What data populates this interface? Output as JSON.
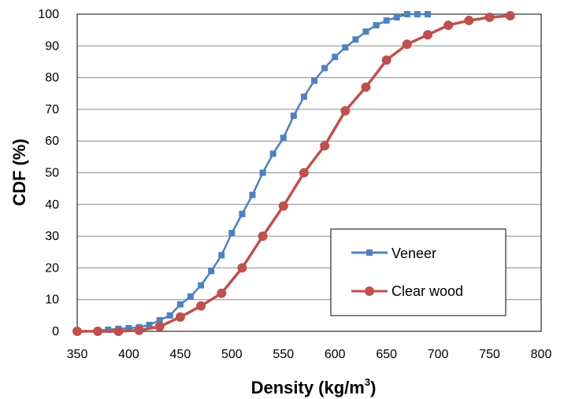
{
  "chart_data": {
    "type": "line",
    "xlabel": "Density (kg/m",
    "xlabel_sup": "3",
    "xlabel_end": ")",
    "ylabel": "CDF (%)",
    "xlim": [
      350,
      800
    ],
    "ylim": [
      0,
      100
    ],
    "x_ticks": [
      "350",
      "400",
      "450",
      "500",
      "550",
      "600",
      "650",
      "700",
      "750",
      "800"
    ],
    "y_ticks": [
      "0",
      "10",
      "20",
      "30",
      "40",
      "50",
      "60",
      "70",
      "80",
      "90",
      "100"
    ],
    "grid": "horizontal",
    "legend_position": "bottom-right",
    "series": [
      {
        "name": "Veneer",
        "color": "#4f81bd",
        "marker": "square",
        "points": [
          [
            370,
            0.3
          ],
          [
            380,
            0.5
          ],
          [
            390,
            0.8
          ],
          [
            400,
            1.0
          ],
          [
            410,
            1.3
          ],
          [
            420,
            2.0
          ],
          [
            430,
            3.5
          ],
          [
            440,
            5.0
          ],
          [
            450,
            8.5
          ],
          [
            460,
            11.0
          ],
          [
            470,
            14.5
          ],
          [
            480,
            19.0
          ],
          [
            490,
            24.0
          ],
          [
            500,
            31.0
          ],
          [
            510,
            37.0
          ],
          [
            520,
            43.0
          ],
          [
            530,
            50.0
          ],
          [
            540,
            56.0
          ],
          [
            550,
            61.0
          ],
          [
            560,
            68.0
          ],
          [
            570,
            74.0
          ],
          [
            580,
            79.0
          ],
          [
            590,
            83.0
          ],
          [
            600,
            86.5
          ],
          [
            610,
            89.5
          ],
          [
            620,
            92.0
          ],
          [
            630,
            94.5
          ],
          [
            640,
            96.5
          ],
          [
            650,
            98.0
          ],
          [
            660,
            99.0
          ],
          [
            670,
            100
          ],
          [
            680,
            100
          ],
          [
            690,
            100
          ]
        ]
      },
      {
        "name": "Clear wood",
        "color": "#c0504d",
        "marker": "circle",
        "points": [
          [
            350,
            0
          ],
          [
            370,
            0
          ],
          [
            390,
            0
          ],
          [
            410,
            0.3
          ],
          [
            430,
            1.5
          ],
          [
            450,
            4.5
          ],
          [
            470,
            8.0
          ],
          [
            490,
            12.0
          ],
          [
            510,
            20.0
          ],
          [
            530,
            30.0
          ],
          [
            550,
            39.5
          ],
          [
            570,
            50.0
          ],
          [
            590,
            58.5
          ],
          [
            610,
            69.5
          ],
          [
            630,
            77.0
          ],
          [
            650,
            85.5
          ],
          [
            670,
            90.5
          ],
          [
            690,
            93.5
          ],
          [
            710,
            96.5
          ],
          [
            730,
            98.0
          ],
          [
            750,
            99.0
          ],
          [
            770,
            99.5
          ]
        ]
      }
    ]
  }
}
